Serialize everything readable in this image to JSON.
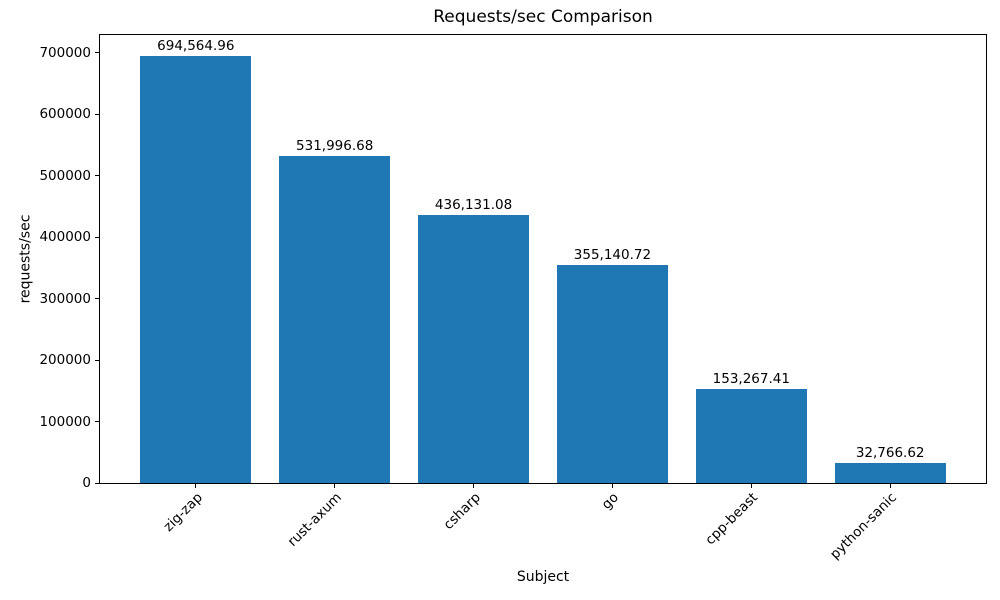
{
  "figure": {
    "background_color": "#ffffff",
    "text_color": "#000000",
    "axis_color": "#000000"
  },
  "chart_data": {
    "type": "bar",
    "title": "Requests/sec Comparison",
    "xlabel": "Subject",
    "ylabel": "requests/sec",
    "categories": [
      "zig-zap",
      "rust-axum",
      "csharp",
      "go",
      "cpp-beast",
      "python-sanic"
    ],
    "values": [
      694564.96,
      531996.68,
      436131.08,
      355140.72,
      153267.41,
      32766.62
    ],
    "data_labels": [
      "694,564.96",
      "531,996.68",
      "436,131.08",
      "355,140.72",
      "153,267.41",
      "32,766.62"
    ],
    "bar_color": "#1f77b4",
    "ylim": [
      0,
      729293
    ],
    "yticks": [
      0,
      100000,
      200000,
      300000,
      400000,
      500000,
      600000,
      700000
    ],
    "ytick_labels": [
      "0",
      "100000",
      "200000",
      "300000",
      "400000",
      "500000",
      "600000",
      "700000"
    ],
    "xtick_rotation": 45,
    "grid": false,
    "legend": false
  }
}
